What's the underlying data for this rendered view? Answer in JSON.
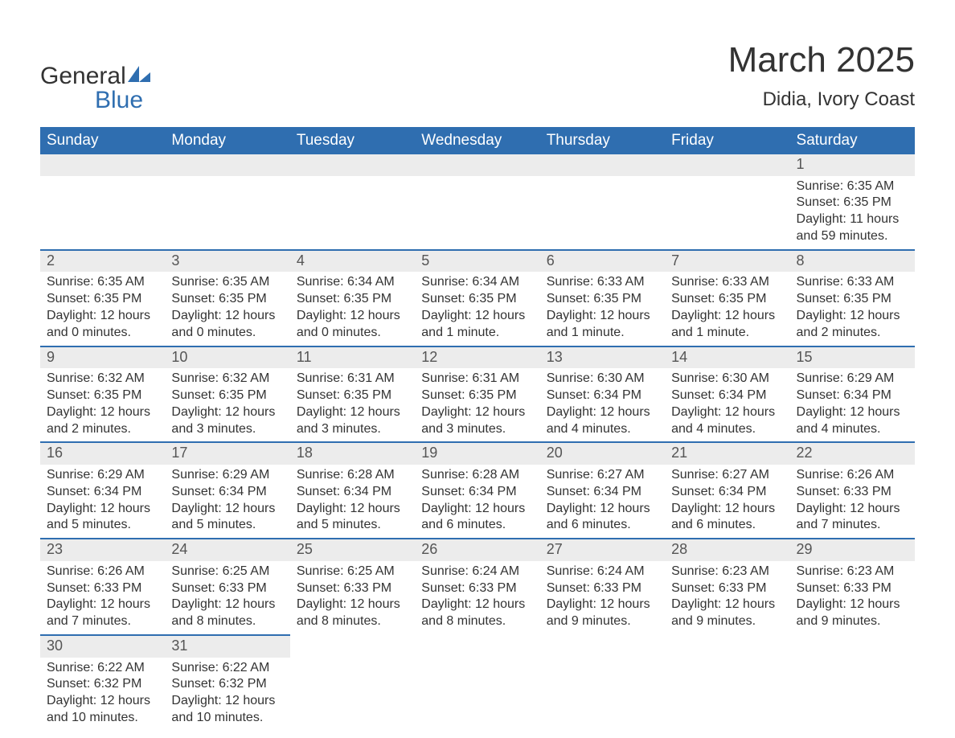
{
  "brand": {
    "word1": "General",
    "word2": "Blue"
  },
  "title": "March 2025",
  "subtitle": "Didia, Ivory Coast",
  "colors": {
    "header_bg": "#2f6eb0",
    "header_text": "#ffffff",
    "daynum_bg": "#ececec",
    "row_divider": "#2f6eb0",
    "text": "#333333"
  },
  "dayLabels": [
    "Sunday",
    "Monday",
    "Tuesday",
    "Wednesday",
    "Thursday",
    "Friday",
    "Saturday"
  ],
  "firstDayOffset": 6,
  "daysInMonth": 31,
  "days": {
    "1": {
      "sunrise": "6:35 AM",
      "sunset": "6:35 PM",
      "daylight": "11 hours and 59 minutes."
    },
    "2": {
      "sunrise": "6:35 AM",
      "sunset": "6:35 PM",
      "daylight": "12 hours and 0 minutes."
    },
    "3": {
      "sunrise": "6:35 AM",
      "sunset": "6:35 PM",
      "daylight": "12 hours and 0 minutes."
    },
    "4": {
      "sunrise": "6:34 AM",
      "sunset": "6:35 PM",
      "daylight": "12 hours and 0 minutes."
    },
    "5": {
      "sunrise": "6:34 AM",
      "sunset": "6:35 PM",
      "daylight": "12 hours and 1 minute."
    },
    "6": {
      "sunrise": "6:33 AM",
      "sunset": "6:35 PM",
      "daylight": "12 hours and 1 minute."
    },
    "7": {
      "sunrise": "6:33 AM",
      "sunset": "6:35 PM",
      "daylight": "12 hours and 1 minute."
    },
    "8": {
      "sunrise": "6:33 AM",
      "sunset": "6:35 PM",
      "daylight": "12 hours and 2 minutes."
    },
    "9": {
      "sunrise": "6:32 AM",
      "sunset": "6:35 PM",
      "daylight": "12 hours and 2 minutes."
    },
    "10": {
      "sunrise": "6:32 AM",
      "sunset": "6:35 PM",
      "daylight": "12 hours and 3 minutes."
    },
    "11": {
      "sunrise": "6:31 AM",
      "sunset": "6:35 PM",
      "daylight": "12 hours and 3 minutes."
    },
    "12": {
      "sunrise": "6:31 AM",
      "sunset": "6:35 PM",
      "daylight": "12 hours and 3 minutes."
    },
    "13": {
      "sunrise": "6:30 AM",
      "sunset": "6:34 PM",
      "daylight": "12 hours and 4 minutes."
    },
    "14": {
      "sunrise": "6:30 AM",
      "sunset": "6:34 PM",
      "daylight": "12 hours and 4 minutes."
    },
    "15": {
      "sunrise": "6:29 AM",
      "sunset": "6:34 PM",
      "daylight": "12 hours and 4 minutes."
    },
    "16": {
      "sunrise": "6:29 AM",
      "sunset": "6:34 PM",
      "daylight": "12 hours and 5 minutes."
    },
    "17": {
      "sunrise": "6:29 AM",
      "sunset": "6:34 PM",
      "daylight": "12 hours and 5 minutes."
    },
    "18": {
      "sunrise": "6:28 AM",
      "sunset": "6:34 PM",
      "daylight": "12 hours and 5 minutes."
    },
    "19": {
      "sunrise": "6:28 AM",
      "sunset": "6:34 PM",
      "daylight": "12 hours and 6 minutes."
    },
    "20": {
      "sunrise": "6:27 AM",
      "sunset": "6:34 PM",
      "daylight": "12 hours and 6 minutes."
    },
    "21": {
      "sunrise": "6:27 AM",
      "sunset": "6:34 PM",
      "daylight": "12 hours and 6 minutes."
    },
    "22": {
      "sunrise": "6:26 AM",
      "sunset": "6:33 PM",
      "daylight": "12 hours and 7 minutes."
    },
    "23": {
      "sunrise": "6:26 AM",
      "sunset": "6:33 PM",
      "daylight": "12 hours and 7 minutes."
    },
    "24": {
      "sunrise": "6:25 AM",
      "sunset": "6:33 PM",
      "daylight": "12 hours and 8 minutes."
    },
    "25": {
      "sunrise": "6:25 AM",
      "sunset": "6:33 PM",
      "daylight": "12 hours and 8 minutes."
    },
    "26": {
      "sunrise": "6:24 AM",
      "sunset": "6:33 PM",
      "daylight": "12 hours and 8 minutes."
    },
    "27": {
      "sunrise": "6:24 AM",
      "sunset": "6:33 PM",
      "daylight": "12 hours and 9 minutes."
    },
    "28": {
      "sunrise": "6:23 AM",
      "sunset": "6:33 PM",
      "daylight": "12 hours and 9 minutes."
    },
    "29": {
      "sunrise": "6:23 AM",
      "sunset": "6:33 PM",
      "daylight": "12 hours and 9 minutes."
    },
    "30": {
      "sunrise": "6:22 AM",
      "sunset": "6:32 PM",
      "daylight": "12 hours and 10 minutes."
    },
    "31": {
      "sunrise": "6:22 AM",
      "sunset": "6:32 PM",
      "daylight": "12 hours and 10 minutes."
    }
  },
  "labels": {
    "sunrise": "Sunrise: ",
    "sunset": "Sunset: ",
    "daylight": "Daylight: "
  }
}
